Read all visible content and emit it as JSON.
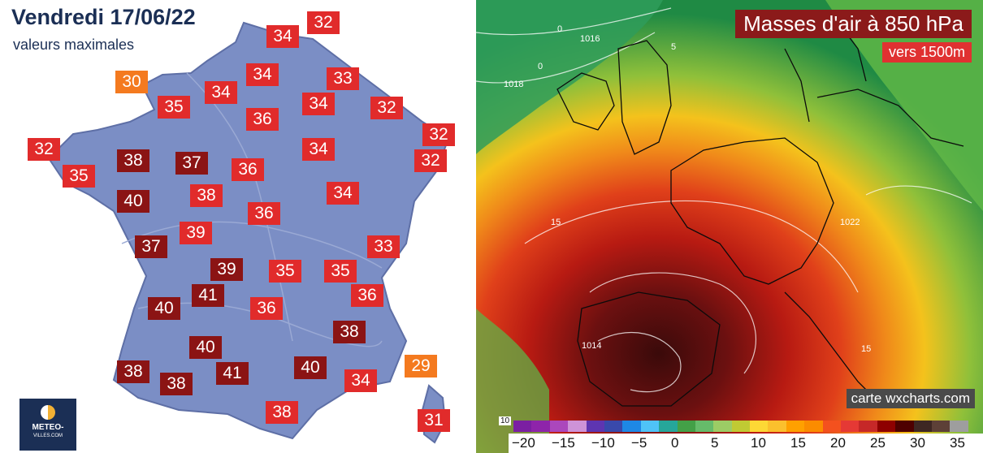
{
  "left": {
    "title": "Vendredi 17/06/22",
    "subtitle": "valeurs maximales",
    "colors": {
      "land": "#7b8ec5",
      "coast": "#5e6fa6",
      "dark": "#8b1414",
      "red": "#e12b2b",
      "orange": "#f47a1f"
    },
    "temps": [
      {
        "v": "32",
        "c": "red"
      },
      {
        "v": "34",
        "c": "red"
      },
      {
        "v": "34",
        "c": "red"
      },
      {
        "v": "33",
        "c": "red"
      },
      {
        "v": "30",
        "c": "orange"
      },
      {
        "v": "34",
        "c": "red"
      },
      {
        "v": "35",
        "c": "red"
      },
      {
        "v": "34",
        "c": "red"
      },
      {
        "v": "32",
        "c": "red"
      },
      {
        "v": "36",
        "c": "red"
      },
      {
        "v": "32",
        "c": "red"
      },
      {
        "v": "32",
        "c": "red"
      },
      {
        "v": "34",
        "c": "red"
      },
      {
        "v": "32",
        "c": "red"
      },
      {
        "v": "38",
        "c": "dark"
      },
      {
        "v": "37",
        "c": "dark"
      },
      {
        "v": "36",
        "c": "red"
      },
      {
        "v": "35",
        "c": "red"
      },
      {
        "v": "38",
        "c": "red"
      },
      {
        "v": "34",
        "c": "red"
      },
      {
        "v": "40",
        "c": "dark"
      },
      {
        "v": "36",
        "c": "red"
      },
      {
        "v": "39",
        "c": "red"
      },
      {
        "v": "37",
        "c": "dark"
      },
      {
        "v": "33",
        "c": "red"
      },
      {
        "v": "39",
        "c": "dark"
      },
      {
        "v": "35",
        "c": "red"
      },
      {
        "v": "35",
        "c": "red"
      },
      {
        "v": "41",
        "c": "dark"
      },
      {
        "v": "36",
        "c": "red"
      },
      {
        "v": "40",
        "c": "dark"
      },
      {
        "v": "36",
        "c": "red"
      },
      {
        "v": "38",
        "c": "dark"
      },
      {
        "v": "40",
        "c": "dark"
      },
      {
        "v": "38",
        "c": "dark"
      },
      {
        "v": "41",
        "c": "dark"
      },
      {
        "v": "40",
        "c": "dark"
      },
      {
        "v": "34",
        "c": "red"
      },
      {
        "v": "29",
        "c": "orange"
      },
      {
        "v": "38",
        "c": "dark"
      },
      {
        "v": "31",
        "c": "red"
      },
      {
        "v": "38",
        "c": "red"
      }
    ],
    "logo": {
      "line1": "METEO-",
      "line2": "VILLES.COM"
    }
  },
  "right": {
    "title": "Masses d'air à 850 hPa",
    "subtitle": "vers 1500m",
    "credit": "carte wxcharts.com",
    "scale_start": "10",
    "scale_labels": [
      "−20",
      "−15",
      "−10",
      "−5",
      "0",
      "5",
      "10",
      "15",
      "20",
      "25",
      "30",
      "35"
    ],
    "contour_labels": [
      "0",
      "1016",
      "1018",
      "5",
      "0",
      "15",
      "1022",
      "1014",
      "15"
    ]
  }
}
